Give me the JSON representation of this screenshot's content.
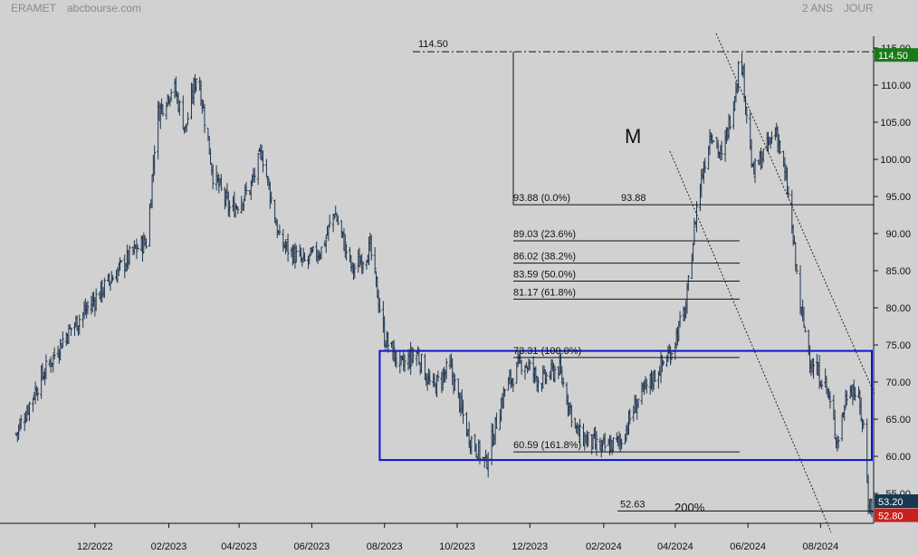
{
  "header": {
    "ticker": "ERAMET",
    "source": "abcbourse.com",
    "period": "2 ANS",
    "frequency": "JOUR"
  },
  "chart_data": {
    "type": "ohlc",
    "title": "ERAMET",
    "ylim": [
      51,
      116
    ],
    "y_ticks": [
      "55.00",
      "60.00",
      "65.00",
      "70.00",
      "75.00",
      "80.00",
      "85.00",
      "90.00",
      "95.00",
      "100.00",
      "105.00",
      "110.00",
      "115.00"
    ],
    "x_ticks": [
      "12/2022",
      "02/2023",
      "04/2023",
      "06/2023",
      "08/2023",
      "10/2023",
      "12/2023",
      "02/2024",
      "04/2024",
      "06/2024",
      "08/2024"
    ],
    "x_start": "2022-09-26",
    "x_end": "2024-09-13",
    "approx_path": [
      [
        "2022-09-26",
        63
      ],
      [
        "2022-10-15",
        70
      ],
      [
        "2022-11-05",
        76
      ],
      [
        "2022-11-25",
        80
      ],
      [
        "2022-12-15",
        84
      ],
      [
        "2023-01-05",
        88
      ],
      [
        "2023-01-14",
        89
      ],
      [
        "2023-01-22",
        106
      ],
      [
        "2023-02-05",
        110
      ],
      [
        "2023-02-15",
        104
      ],
      [
        "2023-02-25",
        112
      ],
      [
        "2023-03-10",
        98
      ],
      [
        "2023-03-25",
        93
      ],
      [
        "2023-04-10",
        96
      ],
      [
        "2023-04-20",
        101
      ],
      [
        "2023-05-05",
        89
      ],
      [
        "2023-05-25",
        86
      ],
      [
        "2023-06-10",
        88
      ],
      [
        "2023-06-20",
        93
      ],
      [
        "2023-07-05",
        85
      ],
      [
        "2023-07-20",
        88
      ],
      [
        "2023-08-01",
        76
      ],
      [
        "2023-08-15",
        72
      ],
      [
        "2023-08-28",
        74
      ],
      [
        "2023-09-10",
        69
      ],
      [
        "2023-09-25",
        72
      ],
      [
        "2023-10-10",
        63
      ],
      [
        "2023-10-25",
        59
      ],
      [
        "2023-11-10",
        69
      ],
      [
        "2023-11-25",
        73
      ],
      [
        "2023-12-10",
        70
      ],
      [
        "2023-12-25",
        72
      ],
      [
        "2024-01-10",
        63
      ],
      [
        "2024-01-30",
        61
      ],
      [
        "2024-02-15",
        62
      ],
      [
        "2024-02-28",
        67
      ],
      [
        "2024-03-15",
        71
      ],
      [
        "2024-03-28",
        74
      ],
      [
        "2024-04-10",
        80
      ],
      [
        "2024-04-20",
        95
      ],
      [
        "2024-05-01",
        104
      ],
      [
        "2024-05-10",
        100
      ],
      [
        "2024-05-20",
        108
      ],
      [
        "2024-05-26",
        114.5
      ],
      [
        "2024-06-05",
        98
      ],
      [
        "2024-06-15",
        101
      ],
      [
        "2024-06-25",
        104
      ],
      [
        "2024-07-05",
        95
      ],
      [
        "2024-07-15",
        80
      ],
      [
        "2024-07-25",
        72
      ],
      [
        "2024-08-05",
        70
      ],
      [
        "2024-08-15",
        62
      ],
      [
        "2024-08-25",
        70
      ],
      [
        "2024-09-01",
        68
      ],
      [
        "2024-09-06",
        64
      ],
      [
        "2024-09-10",
        54
      ],
      [
        "2024-09-13",
        53.2
      ]
    ],
    "last_price": "53.20",
    "high_label": "114.50",
    "below_tag": "52.80",
    "fib_levels": [
      {
        "label": "93.88  (0.0%)",
        "value": 93.88,
        "right_label": "93.88"
      },
      {
        "label": "89.03  (23.6%)",
        "value": 89.03
      },
      {
        "label": "86.02  (38.2%)",
        "value": 86.02
      },
      {
        "label": "83.59  (50.0%)",
        "value": 83.59
      },
      {
        "label": "81.17  (61.8%)",
        "value": 81.17
      },
      {
        "label": "73.31  (100.0%)",
        "value": 73.31
      },
      {
        "label": "60.59  (161.8%)",
        "value": 60.59
      },
      {
        "label": "52.63",
        "value": 52.63
      }
    ],
    "annotations": {
      "pattern_letter": "M",
      "extension_label": "200%",
      "top_level": "114.50",
      "top_level_value": 114.5
    },
    "range_box": {
      "from": "2023-07-28",
      "to": "2024-09-13",
      "low": 59.5,
      "high": 74.2
    },
    "grid": false,
    "colors": {
      "bars": "#1e3550",
      "box": "#0a14d6",
      "last_tag": "#17384f",
      "high_tag": "#1a7a1a",
      "low_tag": "#c9201f",
      "background": "#d1d1d1"
    }
  }
}
